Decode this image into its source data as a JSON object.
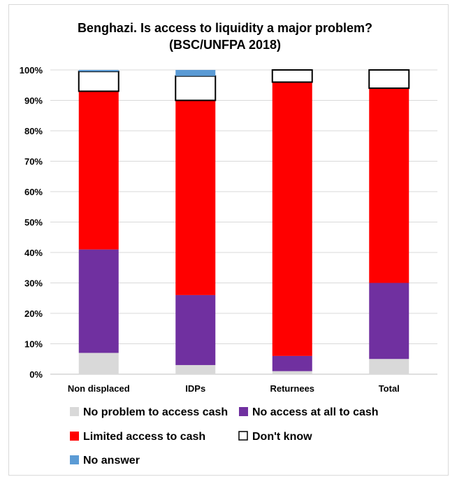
{
  "chart_data": {
    "type": "bar",
    "stacked": true,
    "title": "Benghazi. Is access to liquidity a major problem?",
    "subtitle": "(BSC/UNFPA 2018)",
    "categories": [
      "Non displaced",
      "IDPs",
      "Returnees",
      "Total"
    ],
    "series": [
      {
        "name": "No problem to access cash",
        "color": "#d9d9d9",
        "values": [
          7,
          3,
          1,
          5
        ]
      },
      {
        "name": "No access at all to cash",
        "color": "#7030a0",
        "values": [
          34,
          23,
          5,
          25
        ]
      },
      {
        "name": "Limited access to cash",
        "color": "#ff0000",
        "values": [
          52,
          64,
          90,
          64
        ]
      },
      {
        "name": "Don't know",
        "color": "#ffffff",
        "values": [
          6.5,
          8,
          4,
          6
        ]
      },
      {
        "name": "No answer",
        "color": "#5b9bd5",
        "values": [
          0.5,
          2,
          0,
          0
        ]
      }
    ],
    "yticks": [
      "0%",
      "10%",
      "20%",
      "30%",
      "40%",
      "50%",
      "60%",
      "70%",
      "80%",
      "90%",
      "100%"
    ],
    "ylim": [
      0,
      100
    ],
    "grid": true,
    "legend_position": "bottom"
  }
}
